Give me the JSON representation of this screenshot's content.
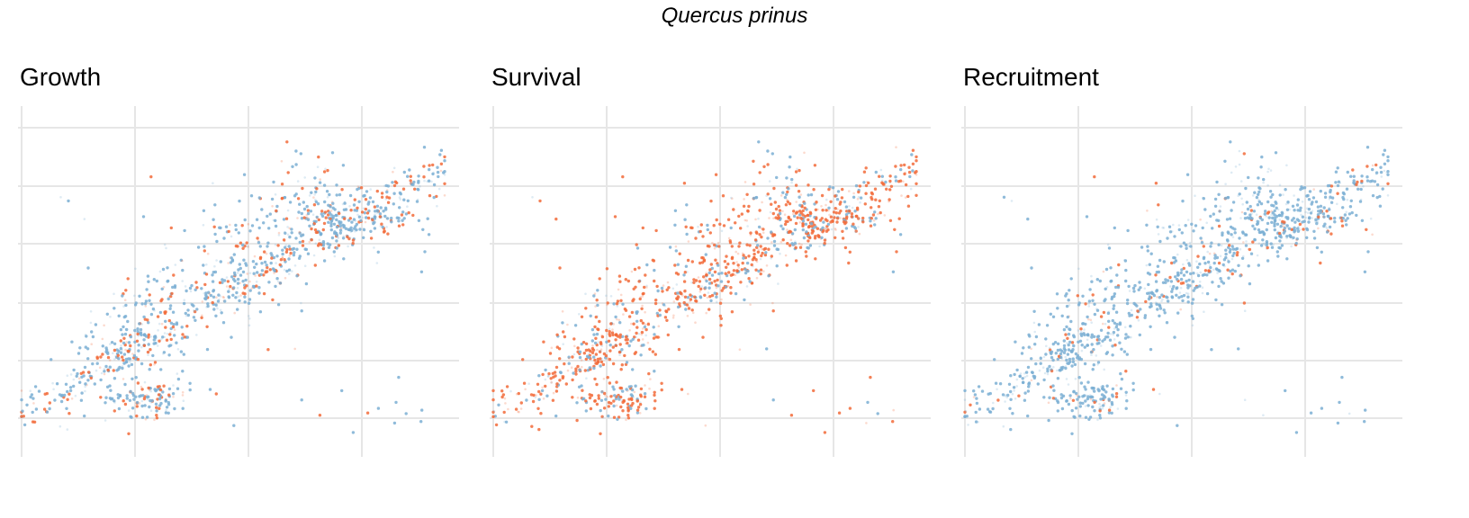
{
  "figure": {
    "title": "Quercus prinus"
  },
  "colors": {
    "grid": "#e6e6e6",
    "blue": "#7bafd4",
    "orange": "#f26b3a"
  },
  "chart_data": [
    {
      "type": "scatter",
      "title": "Growth",
      "xlim": [
        0,
        100
      ],
      "ylim": [
        0,
        100
      ],
      "grid": true,
      "orange_share": 0.3
    },
    {
      "type": "scatter",
      "title": "Survival",
      "xlim": [
        0,
        100
      ],
      "ylim": [
        0,
        100
      ],
      "grid": true,
      "orange_share": 0.7
    },
    {
      "type": "scatter",
      "title": "Recruitment",
      "xlim": [
        0,
        100
      ],
      "ylim": [
        0,
        100
      ],
      "grid": true,
      "orange_share": 0.12
    }
  ]
}
